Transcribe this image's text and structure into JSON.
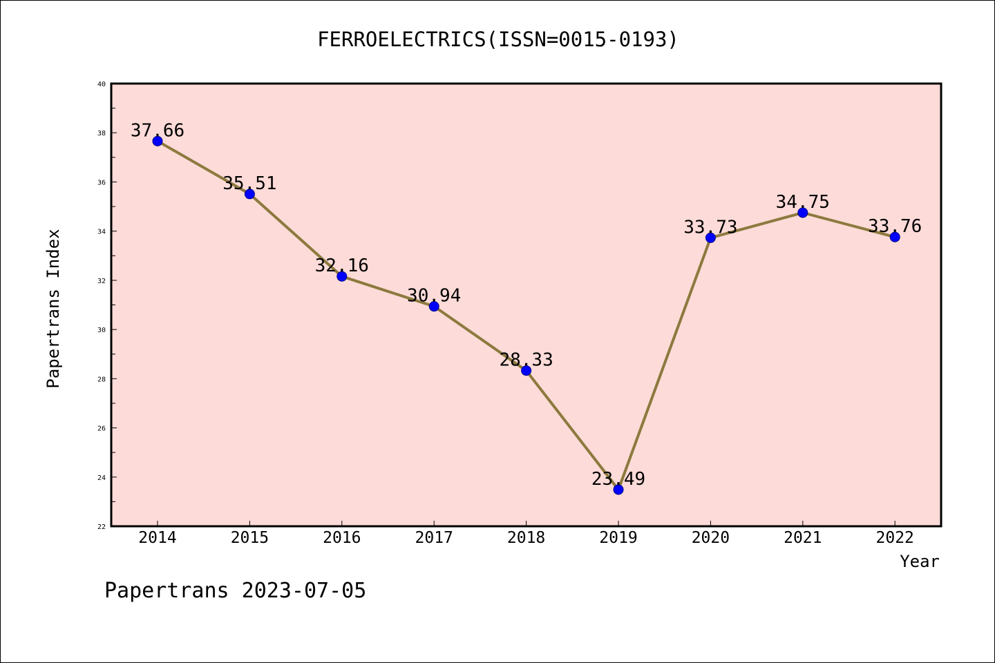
{
  "chart_data": {
    "type": "line",
    "title": "FERROELECTRICS(ISSN=0015-0193)",
    "xlabel": "Year",
    "ylabel": "Papertrans Index",
    "x": [
      "2014",
      "2015",
      "2016",
      "2017",
      "2018",
      "2019",
      "2020",
      "2021",
      "2022"
    ],
    "values": [
      37.66,
      35.51,
      32.16,
      30.94,
      28.33,
      23.49,
      33.73,
      34.75,
      33.76
    ],
    "data_labels": [
      "37.66",
      "35.51",
      "32.16",
      "30.94",
      "28.33",
      "23.49",
      "33.73",
      "34.75",
      "33.76"
    ],
    "ylim": [
      22,
      40
    ],
    "yticks": [
      "22",
      "24",
      "26",
      "28",
      "30",
      "32",
      "34",
      "36",
      "38",
      "40"
    ],
    "grid": false,
    "colors": {
      "plot_background": "#fddbd8",
      "line": "#8c7a3e",
      "marker": "#0000ff",
      "marker_edge": "#00008b"
    },
    "footer": "Papertrans 2023-07-05"
  }
}
